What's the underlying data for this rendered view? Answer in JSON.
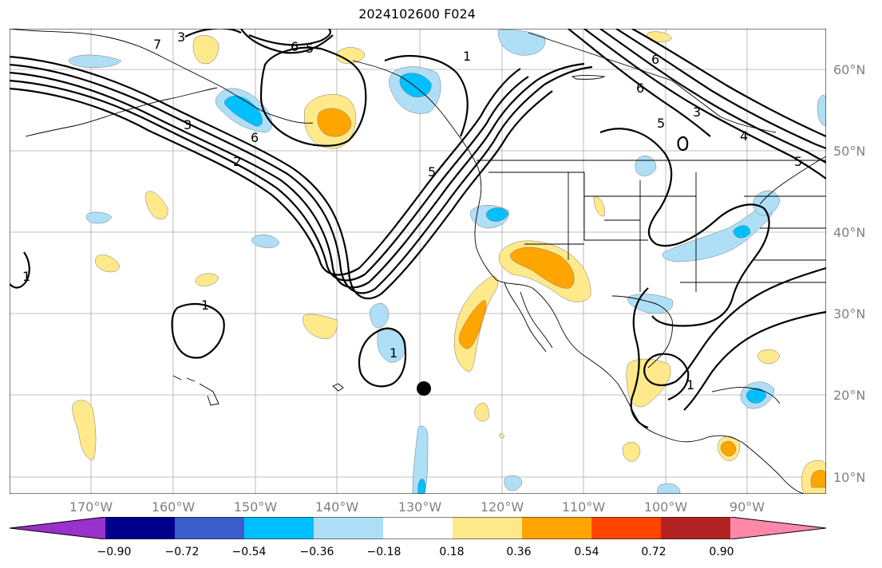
{
  "title": "2024102600 F024",
  "lat_labels": [
    "60°N",
    "50°N",
    "40°N",
    "30°N",
    "20°N",
    "10°N"
  ],
  "lon_labels": [
    "170°W",
    "160°W",
    "150°W",
    "140°W",
    "130°W",
    "120°W",
    "110°W",
    "100°W",
    "90°W"
  ],
  "contour_labels": [
    "3",
    "7",
    "6",
    "5",
    "1",
    "6",
    "3",
    "6",
    "2",
    "5",
    "6",
    "5",
    "3",
    "4",
    "5",
    "1",
    "1",
    "1",
    "1"
  ],
  "colorbar": {
    "ticks": [
      "−0.90",
      "−0.72",
      "−0.54",
      "−0.36",
      "−0.18",
      "0.18",
      "0.36",
      "0.54",
      "0.72",
      "0.90"
    ],
    "colors": [
      "#9932cc",
      "#00008b",
      "#3a5fcd",
      "#00bfff",
      "#aedff7",
      "#ffffff",
      "#ffe98a",
      "#ffa500",
      "#ff4500",
      "#b22222",
      "#ff88aa"
    ]
  },
  "marker": "storm-center-dot"
}
